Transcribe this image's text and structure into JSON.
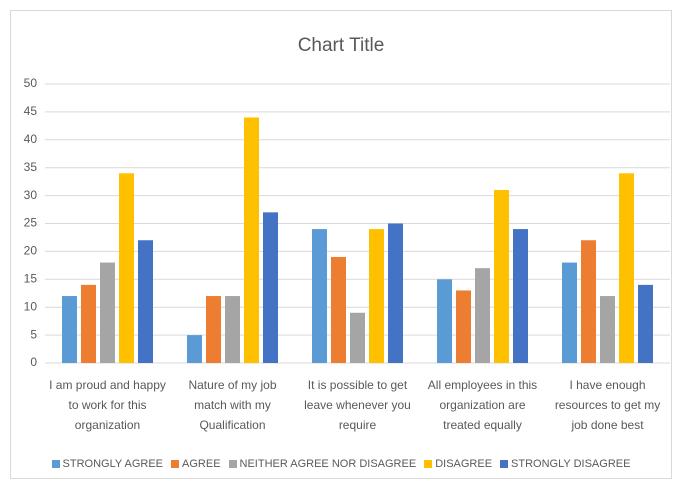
{
  "chart_data": {
    "type": "bar",
    "title": "Chart Title",
    "categories": [
      "I am proud and happy to work for this organization",
      "Nature of my job match with my Qualification",
      "It is possible to get leave whenever you require",
      "All employees in this organization are treated equally",
      "I have enough resources to get my job done best"
    ],
    "series": [
      {
        "name": "STRONGLY AGREE",
        "color": "#5b9bd5",
        "values": [
          12,
          5,
          24,
          15,
          18
        ]
      },
      {
        "name": "AGREE",
        "color": "#ed7d31",
        "values": [
          14,
          12,
          19,
          13,
          22
        ]
      },
      {
        "name": "NEITHER AGREE NOR DISAGREE",
        "color": "#a5a5a5",
        "values": [
          18,
          12,
          9,
          17,
          12
        ]
      },
      {
        "name": "DISAGREE",
        "color": "#ffc000",
        "values": [
          34,
          44,
          24,
          31,
          34
        ]
      },
      {
        "name": "STRONGLY DISAGREE",
        "color": "#4472c4",
        "values": [
          22,
          27,
          25,
          24,
          14
        ]
      }
    ],
    "ylim": [
      0,
      50
    ],
    "yticks": [
      0,
      5,
      10,
      15,
      20,
      25,
      30,
      35,
      40,
      45,
      50
    ],
    "grid": true,
    "legend": "bottom"
  }
}
